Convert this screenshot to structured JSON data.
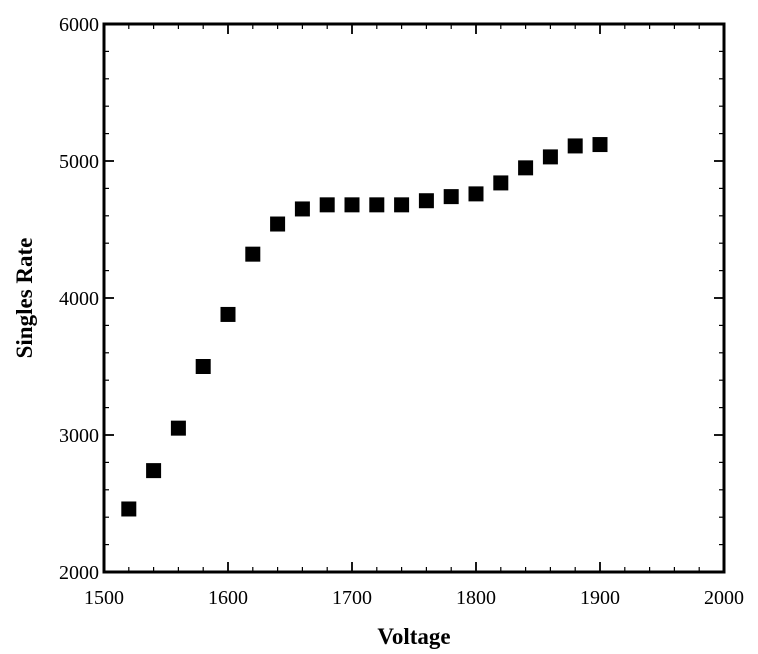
{
  "chart_data": {
    "type": "scatter",
    "title": "",
    "xlabel": "Voltage",
    "ylabel": "Singles Rate",
    "xlim": [
      1500,
      2000
    ],
    "ylim": [
      2000,
      6000
    ],
    "x_ticks": [
      1500,
      1600,
      1700,
      1800,
      1900,
      2000
    ],
    "y_ticks": [
      2000,
      3000,
      4000,
      5000,
      6000
    ],
    "x_minor_step": 20,
    "y_minor_step": 200,
    "grid": false,
    "marker": "square",
    "marker_color": "#000000",
    "series": [
      {
        "x": [
          1520,
          1540,
          1560,
          1580,
          1600,
          1620,
          1640,
          1660,
          1680,
          1700,
          1720,
          1740,
          1760,
          1780,
          1800,
          1820,
          1840,
          1860,
          1880,
          1900
        ],
        "y": [
          2460,
          2740,
          3050,
          3500,
          3880,
          4320,
          4540,
          4650,
          4680,
          4680,
          4680,
          4680,
          4710,
          4740,
          4760,
          4840,
          4950,
          5030,
          5110,
          5120
        ]
      }
    ]
  }
}
